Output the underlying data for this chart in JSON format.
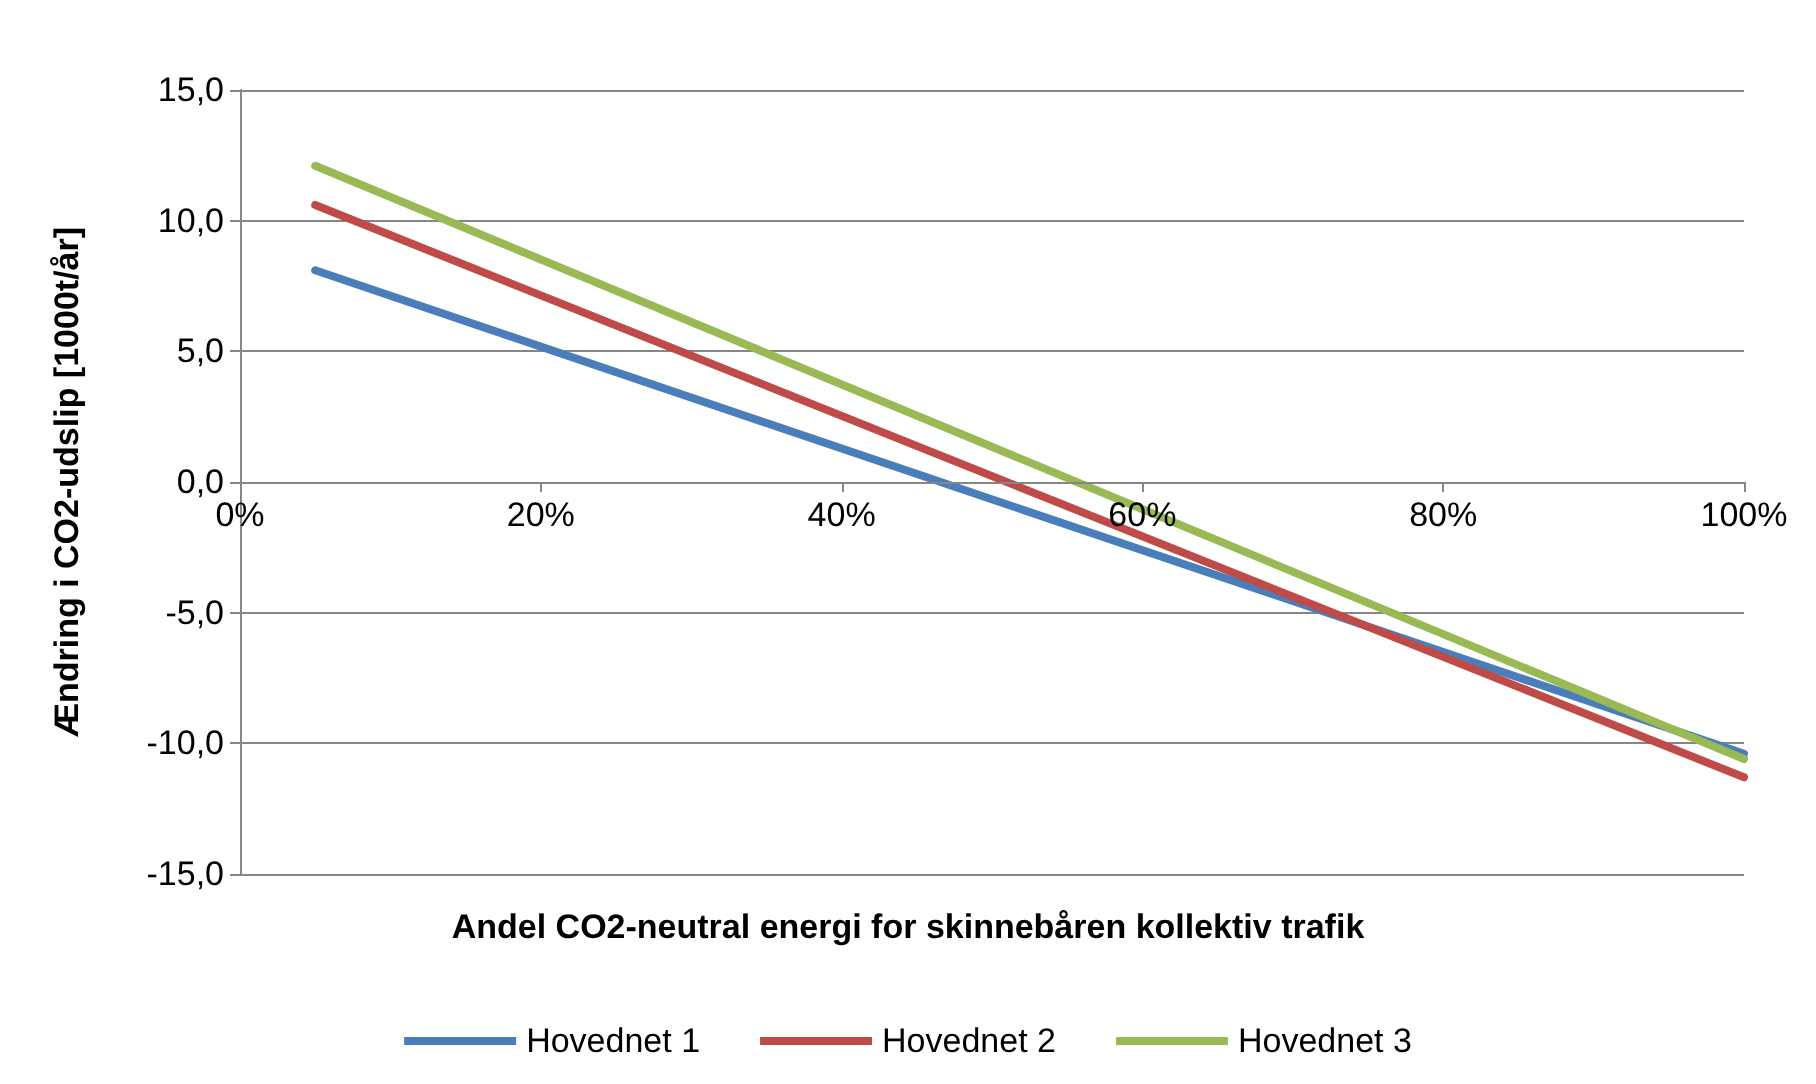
{
  "chart_data": {
    "type": "line",
    "xlabel": "Andel CO2-neutral energi for skinnebåren kollektiv trafik",
    "ylabel": "Ændring i CO2-udslip [1000t/år]",
    "x": [
      5,
      100
    ],
    "series": [
      {
        "name": "Hovednet 1",
        "color": "#4a7ebb",
        "values": [
          8.1,
          -10.4
        ]
      },
      {
        "name": "Hovednet 2",
        "color": "#be4b48",
        "values": [
          10.6,
          -11.3
        ]
      },
      {
        "name": "Hovednet 3",
        "color": "#98b954",
        "values": [
          12.1,
          -10.6
        ]
      }
    ],
    "xlim": [
      0,
      100
    ],
    "xticks": [
      {
        "value": 0,
        "label": "0%"
      },
      {
        "value": 20,
        "label": "20%"
      },
      {
        "value": 40,
        "label": "40%"
      },
      {
        "value": 60,
        "label": "60%"
      },
      {
        "value": 80,
        "label": "80%"
      },
      {
        "value": 100,
        "label": "100%"
      }
    ],
    "ylim": [
      -15,
      15
    ],
    "yticks": [
      {
        "value": -15,
        "label": "-15,0"
      },
      {
        "value": -10,
        "label": "-10,0"
      },
      {
        "value": -5,
        "label": "-5,0"
      },
      {
        "value": 0,
        "label": "0,0"
      },
      {
        "value": 5,
        "label": "5,0"
      },
      {
        "value": 10,
        "label": "10,0"
      },
      {
        "value": 15,
        "label": "15,0"
      }
    ],
    "grid": "y",
    "legend": "bottom",
    "marker": "none",
    "line_style": "solid"
  }
}
